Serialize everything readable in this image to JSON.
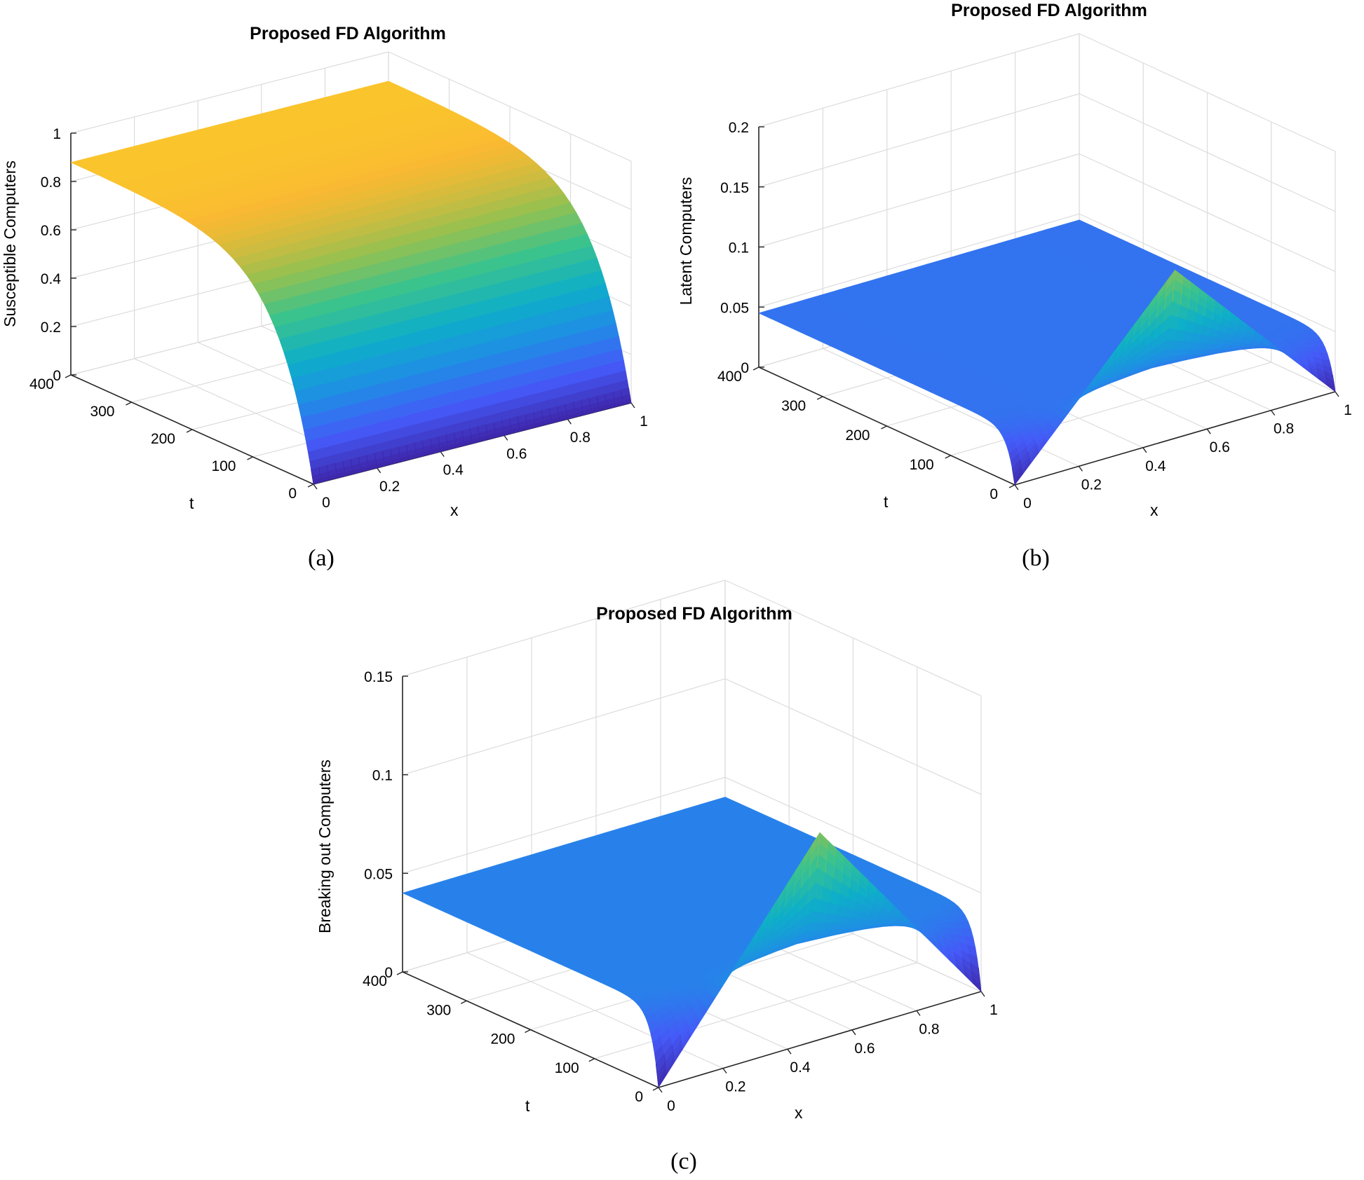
{
  "chart_data": [
    {
      "panel": "(a)",
      "type": "surface",
      "title": "Proposed FD Algorithm",
      "xlabel": "x",
      "ylabel": "t",
      "zlabel": "Susceptible Computers",
      "xlim": [
        0,
        1
      ],
      "ylim": [
        0,
        400
      ],
      "zlim": [
        0,
        1
      ],
      "xticks": [
        "0",
        "0.2",
        "0.4",
        "0.6",
        "0.8",
        "1"
      ],
      "yticks": [
        "0",
        "100",
        "200",
        "300",
        "400"
      ],
      "zticks": [
        "0",
        "0.2",
        "0.4",
        "0.6",
        "0.8",
        "1"
      ],
      "colormap": "parula",
      "surface": {
        "initial_value": 0.0,
        "steady_value": 0.88,
        "time_constant": 60
      }
    },
    {
      "panel": "(b)",
      "type": "surface",
      "title": "Proposed FD Algorithm",
      "xlabel": "x",
      "ylabel": "t",
      "zlabel": "Latent Computers",
      "xlim": [
        0,
        1
      ],
      "ylim": [
        0,
        400
      ],
      "zlim": [
        0,
        0.2
      ],
      "xticks": [
        "0",
        "0.2",
        "0.4",
        "0.6",
        "0.8",
        "1"
      ],
      "yticks": [
        "0",
        "100",
        "200",
        "300",
        "400"
      ],
      "zticks": [
        "0",
        "0.05",
        "0.1",
        "0.15",
        "0.2"
      ],
      "colormap": "parula",
      "surface": {
        "initial_peak_x": 0.5,
        "initial_peak_value": 0.14,
        "steady_value": 0.045,
        "time_constant": 12
      }
    },
    {
      "panel": "(c)",
      "type": "surface",
      "title": "Proposed FD Algorithm",
      "xlabel": "x",
      "ylabel": "t",
      "zlabel": "Breaking out Computers",
      "xlim": [
        0,
        1
      ],
      "ylim": [
        0,
        400
      ],
      "zlim": [
        0,
        0.15
      ],
      "xticks": [
        "0",
        "0.2",
        "0.4",
        "0.6",
        "0.8",
        "1"
      ],
      "yticks": [
        "0",
        "100",
        "200",
        "300",
        "400"
      ],
      "zticks": [
        "0",
        "0.05",
        "0.1",
        "0.15"
      ],
      "colormap": "parula",
      "surface": {
        "initial_peak_x": 0.5,
        "initial_peak_value": 0.105,
        "steady_value": 0.04,
        "time_constant": 12
      }
    }
  ]
}
